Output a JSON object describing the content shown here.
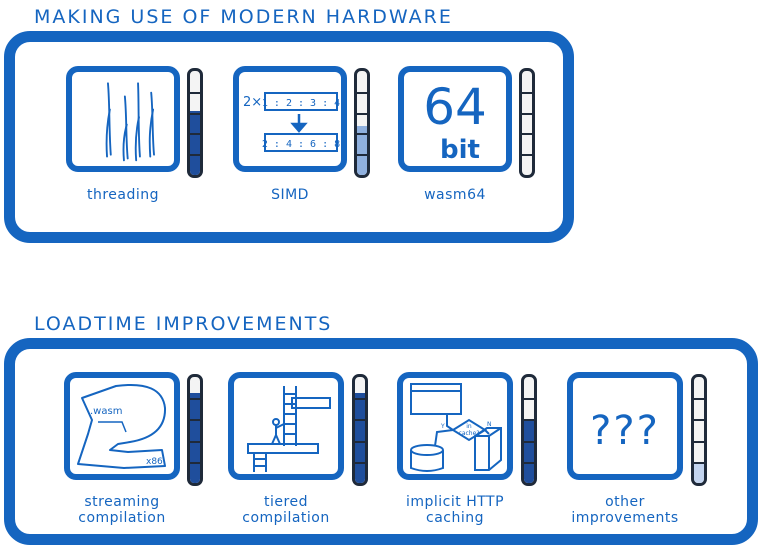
{
  "sections": {
    "hardware": {
      "title": "MAKING USE OF MODERN HARDWARE",
      "items": [
        {
          "label": "threading",
          "progress": 0.62,
          "fill_color": "#1f4e9c"
        },
        {
          "label": "SIMD",
          "progress": 0.47,
          "fill_color": "#8fb0de"
        },
        {
          "label": "wasm64",
          "progress": 0.0,
          "fill_color": "#8fb0de"
        }
      ]
    },
    "loadtime": {
      "title": "LOADTIME IMPROVEMENTS",
      "items": [
        {
          "label_lines": [
            "streaming",
            "compilation"
          ],
          "progress": 0.85,
          "fill_color": "#1f4e9c"
        },
        {
          "label_lines": [
            "tiered",
            "compilation"
          ],
          "progress": 0.85,
          "fill_color": "#1f4e9c"
        },
        {
          "label_lines": [
            "implicit HTTP",
            "caching"
          ],
          "progress": 0.6,
          "fill_color": "#1f4e9c"
        },
        {
          "label_lines": [
            "other",
            "improvements"
          ],
          "progress": 0.2,
          "fill_color": "#c3d4ef"
        }
      ]
    }
  },
  "icons": {
    "simd": {
      "multiplier": "2×",
      "input_row": "1 : 2 : 3 : 4",
      "output_row": "2 : 4 : 6 : 8"
    },
    "wasm64": {
      "number": "64",
      "unit": "bit"
    },
    "streaming": {
      "source": ".wasm",
      "target": "x86"
    },
    "caching": {
      "question": [
        "in",
        "cache?"
      ],
      "yes": "Y",
      "no": "N"
    },
    "other": {
      "symbol": "???"
    }
  },
  "colors": {
    "accent": "#1565c0",
    "gauge_border": "#1f2a3a",
    "gauge_dark": "#1f4e9c",
    "gauge_light": "#8fb0de"
  }
}
